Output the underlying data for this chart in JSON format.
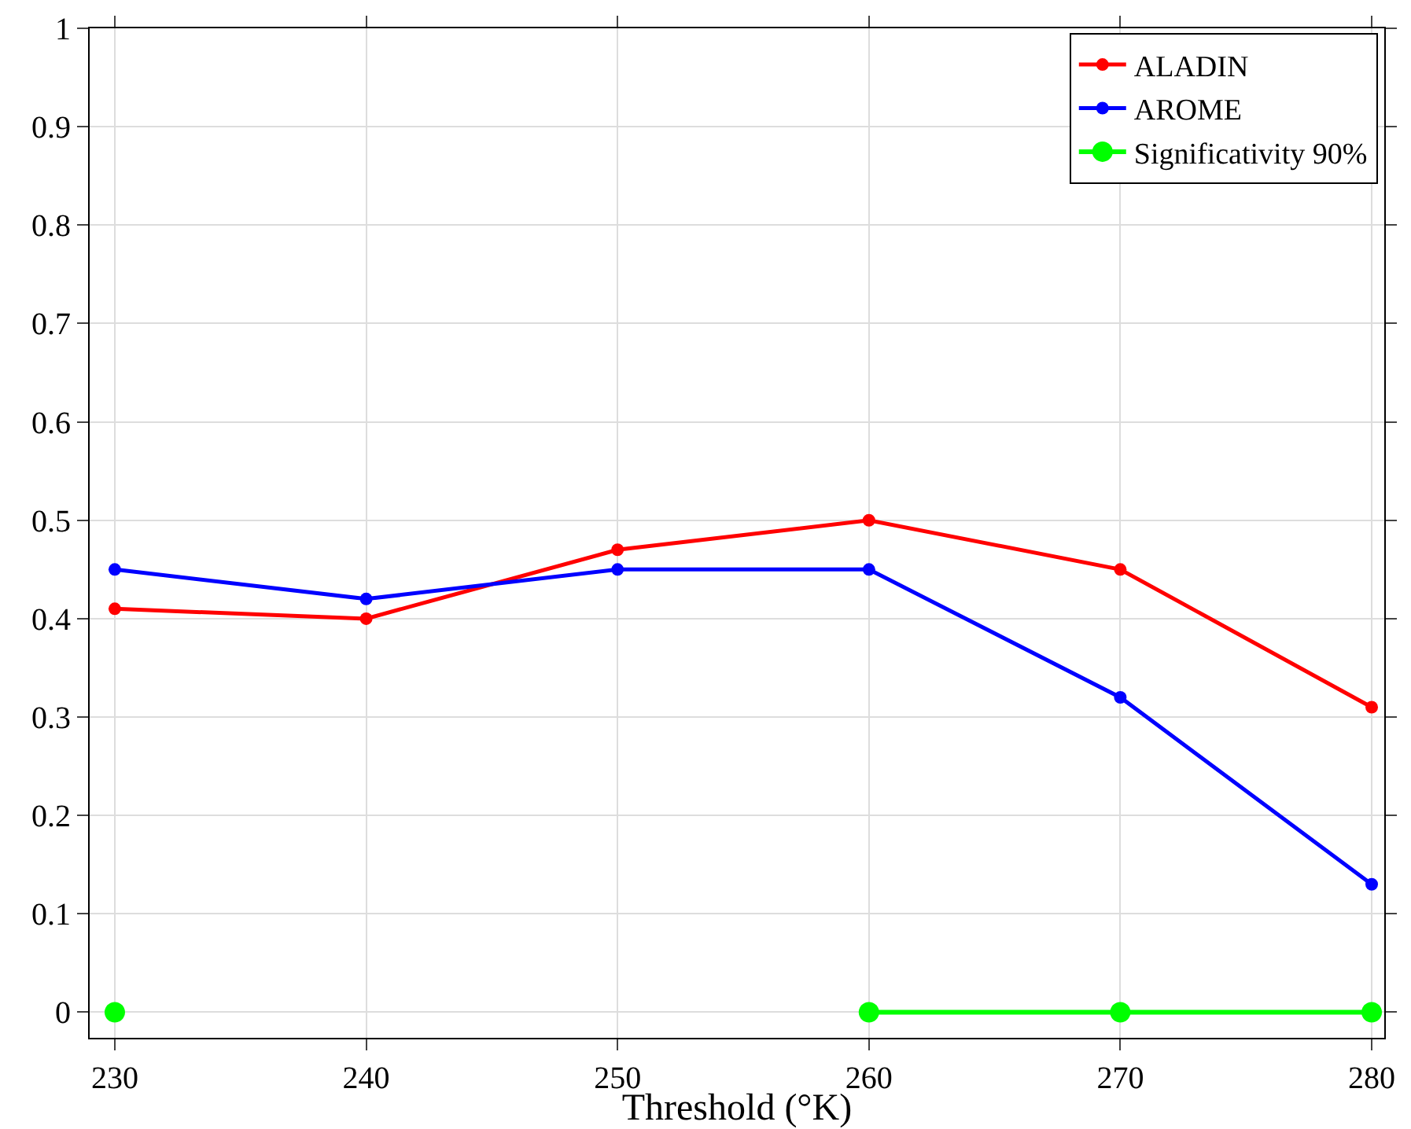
{
  "chart_data": {
    "type": "line",
    "xlabel": "Threshold (°K)",
    "x": [
      230,
      240,
      250,
      260,
      270,
      280
    ],
    "series": [
      {
        "name": "ALADIN",
        "color": "#ff0000",
        "values": [
          0.41,
          0.4,
          0.47,
          0.5,
          0.45,
          0.31
        ]
      },
      {
        "name": "AROME",
        "color": "#0000ff",
        "values": [
          0.45,
          0.42,
          0.45,
          0.45,
          0.32,
          0.13
        ]
      },
      {
        "name": "Significativity 90%",
        "color": "#00ff00",
        "values": [
          0,
          null,
          null,
          0,
          0,
          0
        ]
      }
    ],
    "xlim": [
      229,
      280.5
    ],
    "xticks": [
      230,
      240,
      250,
      260,
      270,
      280
    ],
    "ylim": [
      -0.026,
      1
    ],
    "yticks": [
      0,
      0.1,
      0.2,
      0.3,
      0.4,
      0.5,
      0.6,
      0.7,
      0.8,
      0.9,
      1
    ],
    "grid": true,
    "legend": "top right",
    "marker": "circle",
    "line_style": "solid"
  }
}
